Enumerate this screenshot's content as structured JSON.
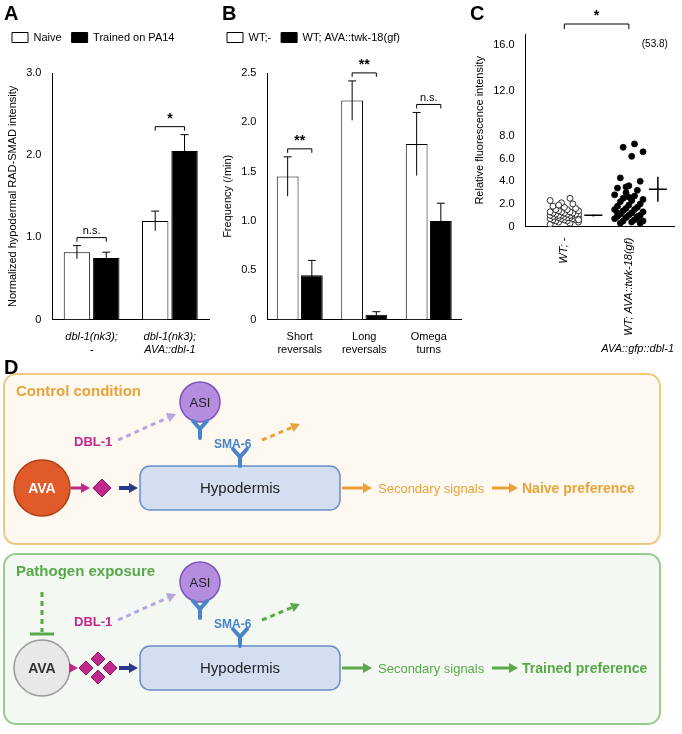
{
  "chart_data": [
    {
      "panel": "A",
      "type": "bar",
      "categories": [
        [
          "dbl-1(nk3);",
          "-"
        ],
        [
          "dbl-1(nk3);",
          "AVA::dbl-1"
        ]
      ],
      "series": [
        {
          "name": "Naive",
          "color": "#ffffff",
          "values": [
            0.82,
            1.2
          ],
          "errors": [
            0.08,
            0.12
          ]
        },
        {
          "name": "Trained on PA14",
          "color": "#000000",
          "values": [
            0.75,
            2.05
          ],
          "errors": [
            0.07,
            0.2
          ]
        }
      ],
      "y_label": "Normalized hypodermal RAD-SMAD intensity",
      "ylim": [
        0,
        3
      ],
      "yticks": [
        0,
        {
          "value": 1,
          "label": "1.0"
        },
        {
          "value": 2,
          "label": "2.0"
        },
        {
          "value": 3,
          "label": "3.0"
        }
      ],
      "significance": [
        "n.s.",
        "*"
      ],
      "legend": "top",
      "grid": false
    },
    {
      "panel": "B",
      "type": "bar",
      "categories": [
        [
          "Short",
          "reversals"
        ],
        [
          "Long",
          "reversals"
        ],
        [
          "Omega",
          "turns"
        ]
      ],
      "series": [
        {
          "name": "WT;-",
          "color": "#ffffff",
          "values": [
            1.45,
            2.22,
            1.78
          ],
          "errors": [
            0.2,
            0.2,
            0.32
          ]
        },
        {
          "name": "WT; AVA::twk-18(gf)",
          "color": "#000000",
          "values": [
            0.45,
            0.05,
            1.0
          ],
          "errors": [
            0.15,
            0.03,
            0.18
          ]
        }
      ],
      "y_label": "Frequency (/min)",
      "ylim": [
        0,
        2.5
      ],
      "yticks": [
        0,
        0.5,
        {
          "value": 1,
          "label": "1.0"
        },
        1.5,
        {
          "value": 2,
          "label": "2.0"
        },
        2.5
      ],
      "significance": [
        "**",
        "**",
        "n.s."
      ],
      "legend": "top",
      "grid": false
    },
    {
      "panel": "C",
      "type": "scatter",
      "categories": [
        "WT; -",
        "WT; AVA::twk-18(gf)"
      ],
      "values": [
        [
          0.2,
          0.3,
          0.4,
          0.4,
          0.5,
          0.5,
          0.6,
          0.6,
          0.6,
          0.7,
          0.7,
          0.7,
          0.8,
          0.8,
          0.8,
          0.8,
          0.9,
          0.9,
          0.9,
          0.9,
          1.0,
          1.0,
          1.0,
          1.0,
          1.0,
          1.1,
          1.1,
          1.1,
          1.1,
          1.2,
          1.2,
          1.2,
          1.3,
          1.3,
          1.3,
          1.4,
          1.4,
          1.5,
          1.5,
          1.6,
          1.7,
          1.8,
          2.0,
          2.1,
          2.3,
          2.5,
          1.9,
          0.6
        ],
        [
          53.8,
          7.3,
          7.0,
          6.6,
          6.2,
          4.3,
          4.0,
          3.6,
          3.4,
          3.2,
          3.0,
          2.8,
          2.7,
          2.5,
          2.4,
          2.3,
          2.2,
          2.0,
          1.9,
          1.8,
          1.7,
          1.6,
          1.5,
          1.5,
          1.4,
          1.3,
          1.2,
          1.1,
          1.0,
          1.0,
          0.9,
          0.8,
          0.8,
          0.7,
          0.6,
          0.5,
          0.5,
          0.4,
          0.3,
          0.3,
          2.6,
          1.2,
          0.9,
          3.5
        ]
      ],
      "means": [
        1.0,
        3.3
      ],
      "errors": [
        0.1,
        1.1
      ],
      "colors": [
        "#ffffff",
        "#000000"
      ],
      "y_label": "Relative fluorescence intensity",
      "x_label": "AVA::gfp::dbl-1",
      "ylim": [
        0,
        17
      ],
      "yticks": [
        0,
        {
          "value": 2,
          "label": "2.0"
        },
        {
          "value": 4,
          "label": "4.0"
        },
        {
          "value": 6,
          "label": "6.0"
        },
        {
          "value": 8,
          "label": "8.0"
        },
        {
          "value": 12,
          "label": "12.0"
        },
        {
          "value": 16,
          "label": "16.0"
        }
      ],
      "significance": "*",
      "outlier_label": "(53.8)",
      "grid": false
    }
  ],
  "diagram": {
    "panel": "D",
    "conditions": [
      {
        "title": "Control condition",
        "color": "#e8a33a",
        "source": "AVA",
        "ligand": "DBL-1",
        "sensor": "ASI",
        "receptor": "SMA-6",
        "target": "Hypodermis",
        "signals": "Secondary signals",
        "output": "Naive preference"
      },
      {
        "title": "Pathogen exposure",
        "color": "#5aa84a",
        "source": "AVA",
        "ligand": "DBL-1",
        "sensor": "ASI",
        "receptor": "SMA-6",
        "target": "Hypodermis",
        "signals": "Secondary signals",
        "output": "Trained preference"
      }
    ]
  }
}
